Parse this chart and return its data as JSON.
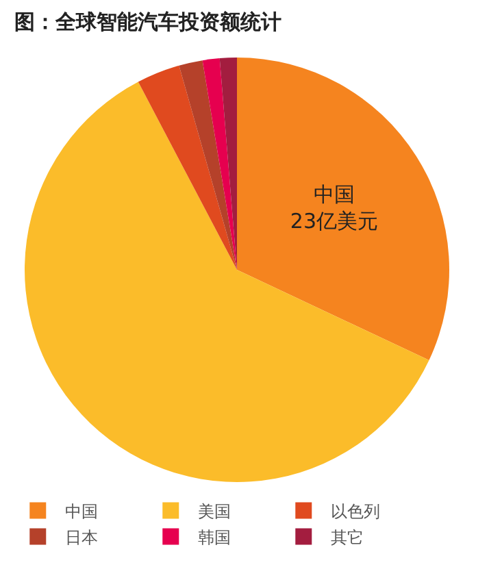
{
  "chart_data": {
    "type": "pie",
    "title": "图：全球智能汽车投资额统计",
    "categories": [
      "中国",
      "美国",
      "以色列",
      "日本",
      "韩国",
      "其它"
    ],
    "values": [
      32,
      60.3,
      3.3,
      1.8,
      1.3,
      1.3
    ],
    "colors": [
      "#f5841f",
      "#fbbc2a",
      "#e04a1f",
      "#b5412a",
      "#e6004f",
      "#a31d3f"
    ],
    "value_labels": [
      "中国\n23亿美元",
      null,
      null,
      null,
      null,
      null
    ],
    "legend": "bottom"
  }
}
